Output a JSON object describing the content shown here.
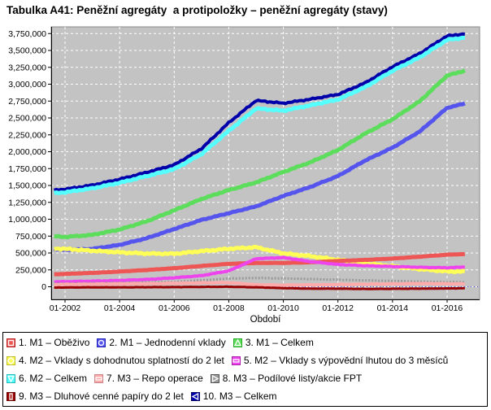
{
  "title": "Tabulka A41: Peněžní agregáty  a protipoložky – peněžní agregáty (stavy)",
  "colors": {
    "plot_bg": "#c3c3c3",
    "grid": "#ffffff",
    "plot_border": "#8a8a8a",
    "axis": "#000000",
    "zero_line": "#4444dd",
    "legend_border": "#000000",
    "text": "#000000"
  },
  "axes": {
    "x_axis_title": "Období",
    "x_tick_labels": [
      "01-2002",
      "01-2004",
      "01-2006",
      "01-2008",
      "01-2010",
      "01-2012",
      "01-2014",
      "01-2016"
    ],
    "x_tick_years": [
      2002,
      2004,
      2006,
      2008,
      2010,
      2012,
      2014,
      2016
    ],
    "y_tick_labels": [
      "0",
      "250,000",
      "500,000",
      "750,000",
      "1,000,000",
      "1,250,000",
      "1,500,000",
      "1,750,000",
      "2,000,000",
      "2,250,000",
      "2,500,000",
      "2,750,000",
      "3,000,000",
      "3,250,000",
      "3,500,000",
      "3,750,000"
    ],
    "y_tick_values": [
      0,
      250000,
      500000,
      750000,
      1000000,
      1250000,
      1500000,
      1750000,
      2000000,
      2250000,
      2500000,
      2750000,
      3000000,
      3250000,
      3500000,
      3750000
    ]
  },
  "chart_data": {
    "type": "line",
    "title": "Tabulka A41: Peněžní agregáty  a protipoložky – peněžní agregáty (stavy)",
    "xlabel": "Období",
    "ylabel": "",
    "x_range": [
      "01-2002",
      "01-2016"
    ],
    "ylim": [
      -190000,
      3840000
    ],
    "grid": true,
    "legend_position": "bottom",
    "x_anchor_years": [
      2001.6,
      2002,
      2003,
      2004,
      2005,
      2006,
      2007,
      2008,
      2009,
      2010,
      2011,
      2012,
      2013,
      2014,
      2015,
      2016,
      2016.65
    ],
    "series": [
      {
        "key": "m1_obezivo",
        "name": "M1 – Oběživo",
        "color": "#ee5555",
        "border": "#bb2222",
        "shape": "square",
        "width": 5,
        "amp": 2500,
        "seed": 1,
        "values": [
          185000,
          190000,
          205000,
          225000,
          248000,
          275000,
          308000,
          340000,
          352000,
          353000,
          362000,
          382000,
          398000,
          418000,
          445000,
          475000,
          483000
        ]
      },
      {
        "key": "m1_jednodenni",
        "name": "M1 – Jednodenní vklady",
        "color": "#5555ee",
        "border": "#2222bb",
        "shape": "circle",
        "width": 5,
        "amp": 7000,
        "seed": 2,
        "values": [
          560000,
          545000,
          560000,
          620000,
          720000,
          855000,
          990000,
          1090000,
          1190000,
          1345000,
          1480000,
          1640000,
          1870000,
          2060000,
          2300000,
          2650000,
          2715000
        ]
      },
      {
        "key": "m1_celkem",
        "name": "M1 – Celkem",
        "color": "#5cdd5c",
        "border": "#22aa22",
        "shape": "triangle-up",
        "width": 5,
        "amp": 9000,
        "seed": 3,
        "values": [
          748000,
          738000,
          768000,
          848000,
          970000,
          1132000,
          1300000,
          1432000,
          1545000,
          1700000,
          1845000,
          2025000,
          2270000,
          2480000,
          2748000,
          3128000,
          3200000
        ]
      },
      {
        "key": "m2_dohodnuta",
        "name": "M2 – Vklady s dohodnutou splatností do 2 let",
        "color": "#ffff55",
        "border": "#bbbb22",
        "shape": "diamond",
        "width": 5,
        "amp": 13000,
        "seed": 4,
        "values": [
          565000,
          560000,
          535000,
          510000,
          492000,
          488000,
          528000,
          562000,
          585000,
          495000,
          452000,
          400000,
          345000,
          305000,
          262000,
          228000,
          225000
        ]
      },
      {
        "key": "m2_vypovedni",
        "name": "M2 – Vklady s výpovědní lhutou do 3 měsíců",
        "color": "#ee44ee",
        "border": "#aa22aa",
        "shape": "hbar",
        "width": 4,
        "amp": 5000,
        "seed": 5,
        "values": [
          72000,
          75000,
          83000,
          93000,
          108000,
          133000,
          165000,
          235000,
          415000,
          432000,
          372000,
          330000,
          312000,
          300000,
          288000,
          282000,
          292000
        ]
      },
      {
        "key": "m2_celkem",
        "name": "M2 – Celkem",
        "color": "#55ffff",
        "border": "#22bbbb",
        "shape": "triangle-down",
        "width": 5,
        "amp": 11000,
        "seed": 6,
        "values": [
          1385000,
          1400000,
          1458000,
          1540000,
          1640000,
          1742000,
          1965000,
          2310000,
          2640000,
          2608000,
          2688000,
          2772000,
          2958000,
          3198000,
          3400000,
          3658000,
          3690000
        ]
      },
      {
        "key": "m3_repo",
        "name": "M3 – Repo operace",
        "color": "#ffaaaa",
        "border": "#cc8888",
        "shape": "hbar",
        "width": 4,
        "amp": 5000,
        "seed": 7,
        "values": [
          32000,
          35000,
          38000,
          42000,
          46000,
          52000,
          58000,
          62000,
          30000,
          24000,
          28000,
          33000,
          38000,
          42000,
          48000,
          45000,
          42000
        ]
      },
      {
        "key": "m3_podilove",
        "name": "M3 – Podílové listy/akcie FPT",
        "color": "#999999",
        "border": "#555555",
        "shape": "triangle-right",
        "width": 3,
        "dash": "2,2",
        "amp": 3000,
        "seed": 8,
        "values": [
          48000,
          52000,
          56000,
          60000,
          66000,
          72000,
          95000,
          122000,
          130000,
          124000,
          114000,
          104000,
          94000,
          86000,
          76000,
          70000,
          68000
        ]
      },
      {
        "key": "m3_dluhove",
        "name": "M3 – Dluhové cenné papíry do 2 let",
        "color": "#990000",
        "border": "#660000",
        "shape": "vbar",
        "width": 3,
        "amp": 2500,
        "seed": 9,
        "values": [
          -12000,
          -10000,
          -8000,
          -8000,
          -6000,
          -5000,
          -2000,
          0,
          -8000,
          -20000,
          -28000,
          -28000,
          -32000,
          -30000,
          -28000,
          -25000,
          -22000
        ]
      },
      {
        "key": "m3_celkem",
        "name": "M3 – Celkem",
        "color": "#0000aa",
        "border": "#000066",
        "shape": "triangle-left",
        "width": 4,
        "amp": 11000,
        "seed": 6,
        "values": [
          1428000,
          1445000,
          1505000,
          1592000,
          1695000,
          1805000,
          2045000,
          2430000,
          2758000,
          2718000,
          2778000,
          2848000,
          3020000,
          3258000,
          3455000,
          3715000,
          3745000
        ]
      }
    ],
    "draw_order": [
      "m3_celkem",
      "m2_celkem",
      "m1_jednodenni",
      "m1_celkem",
      "m2_dohodnuta",
      "m1_obezivo",
      "m2_vypovedni",
      "m3_podilove",
      "m3_repo",
      "m3_dluhove"
    ]
  },
  "legend": {
    "rows": [
      [
        {
          "label": "1. M1 – Oběživo",
          "series": "m1_obezivo"
        },
        {
          "label": "2. M1 – Jednodenní vklady",
          "series": "m1_jednodenni"
        },
        {
          "label": "3. M1 – Celkem",
          "series": "m1_celkem"
        }
      ],
      [
        {
          "label": "4. M2 – Vklady s dohodnutou splatností do 2 let",
          "series": "m2_dohodnuta"
        },
        {
          "label": "5. M2 – Vklady s výpovědní lhutou do 3 měsíců",
          "series": "m2_vypovedni"
        }
      ],
      [
        {
          "label": "6. M2 – Celkem",
          "series": "m2_celkem"
        },
        {
          "label": "7. M3 – Repo operace",
          "series": "m3_repo"
        },
        {
          "label": "8. M3 – Podílové listy/akcie FPT",
          "series": "m3_podilove"
        }
      ],
      [
        {
          "label": "9. M3 – Dluhové cenné papíry do 2 let",
          "series": "m3_dluhove"
        },
        {
          "label": "10. M3 – Celkem",
          "series": "m3_celkem"
        }
      ]
    ]
  }
}
